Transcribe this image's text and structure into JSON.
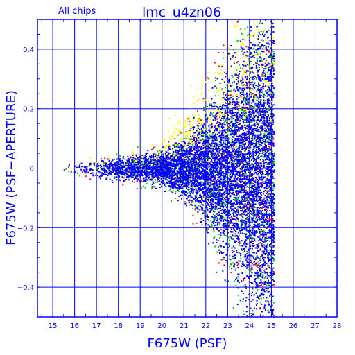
{
  "chart_data": {
    "type": "scatter",
    "title": "lmc_u4zn06",
    "subtitle": "All chips",
    "xlabel": "F675W (PSF)",
    "ylabel": "F675W (PSF−APERTURE)",
    "xlim": [
      14.3,
      28
    ],
    "ylim": [
      -0.5,
      0.5
    ],
    "x_ticks": [
      "15",
      "16",
      "17",
      "18",
      "19",
      "20",
      "21",
      "22",
      "23",
      "24",
      "25",
      "26",
      "27",
      "28"
    ],
    "y_ticks": [
      "0.4",
      "0.2",
      "0",
      "−0.2",
      "−0.4"
    ],
    "y_tick_values": [
      0.4,
      0.2,
      0,
      -0.2,
      -0.4
    ],
    "grid": true,
    "series": [
      {
        "color": "#ff0000",
        "n": 700
      },
      {
        "color": "#ffff00",
        "n": 900
      },
      {
        "color": "#00cc00",
        "n": 1400
      },
      {
        "color": "#0000ff",
        "n": 6500
      }
    ],
    "envelope": [
      {
        "x": 14.5,
        "scatter": 0.0
      },
      {
        "x": 16.0,
        "scatter": 0.01
      },
      {
        "x": 18.0,
        "scatter": 0.02
      },
      {
        "x": 20.0,
        "scatter": 0.03
      },
      {
        "x": 21.0,
        "scatter": 0.05
      },
      {
        "x": 22.0,
        "scatter": 0.09
      },
      {
        "x": 23.0,
        "scatter": 0.16
      },
      {
        "x": 24.0,
        "scatter": 0.24
      },
      {
        "x": 25.0,
        "scatter": 0.3
      }
    ],
    "faint_limit": 25.1
  }
}
